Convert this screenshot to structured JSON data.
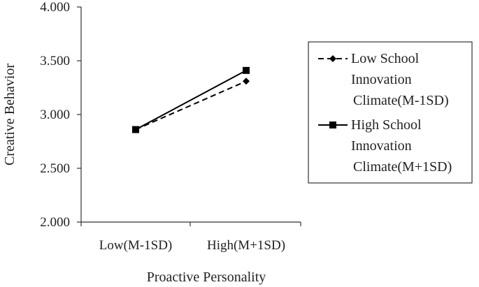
{
  "chart_data": {
    "type": "line",
    "categories": [
      "Low(M-1SD)",
      "High(M+1SD)"
    ],
    "xlabel": "Proactive Personality",
    "ylabel": "Creative Behavior",
    "ylim": [
      2.0,
      4.0
    ],
    "yticks": [
      "2.000",
      "2.500",
      "3.000",
      "3.500",
      "4.000"
    ],
    "grid": false,
    "legend_position": "right",
    "series": [
      {
        "name_lines": [
          "Low School",
          "Innovation",
          "Climate(M-1SD)"
        ],
        "values": [
          2.86,
          3.31
        ],
        "line_style": "dashed",
        "marker": "diamond",
        "color": "#000000"
      },
      {
        "name_lines": [
          "High School",
          "Innovation",
          "Climate(M+1SD)"
        ],
        "values": [
          2.86,
          3.41
        ],
        "line_style": "solid",
        "marker": "square",
        "color": "#000000"
      }
    ]
  }
}
